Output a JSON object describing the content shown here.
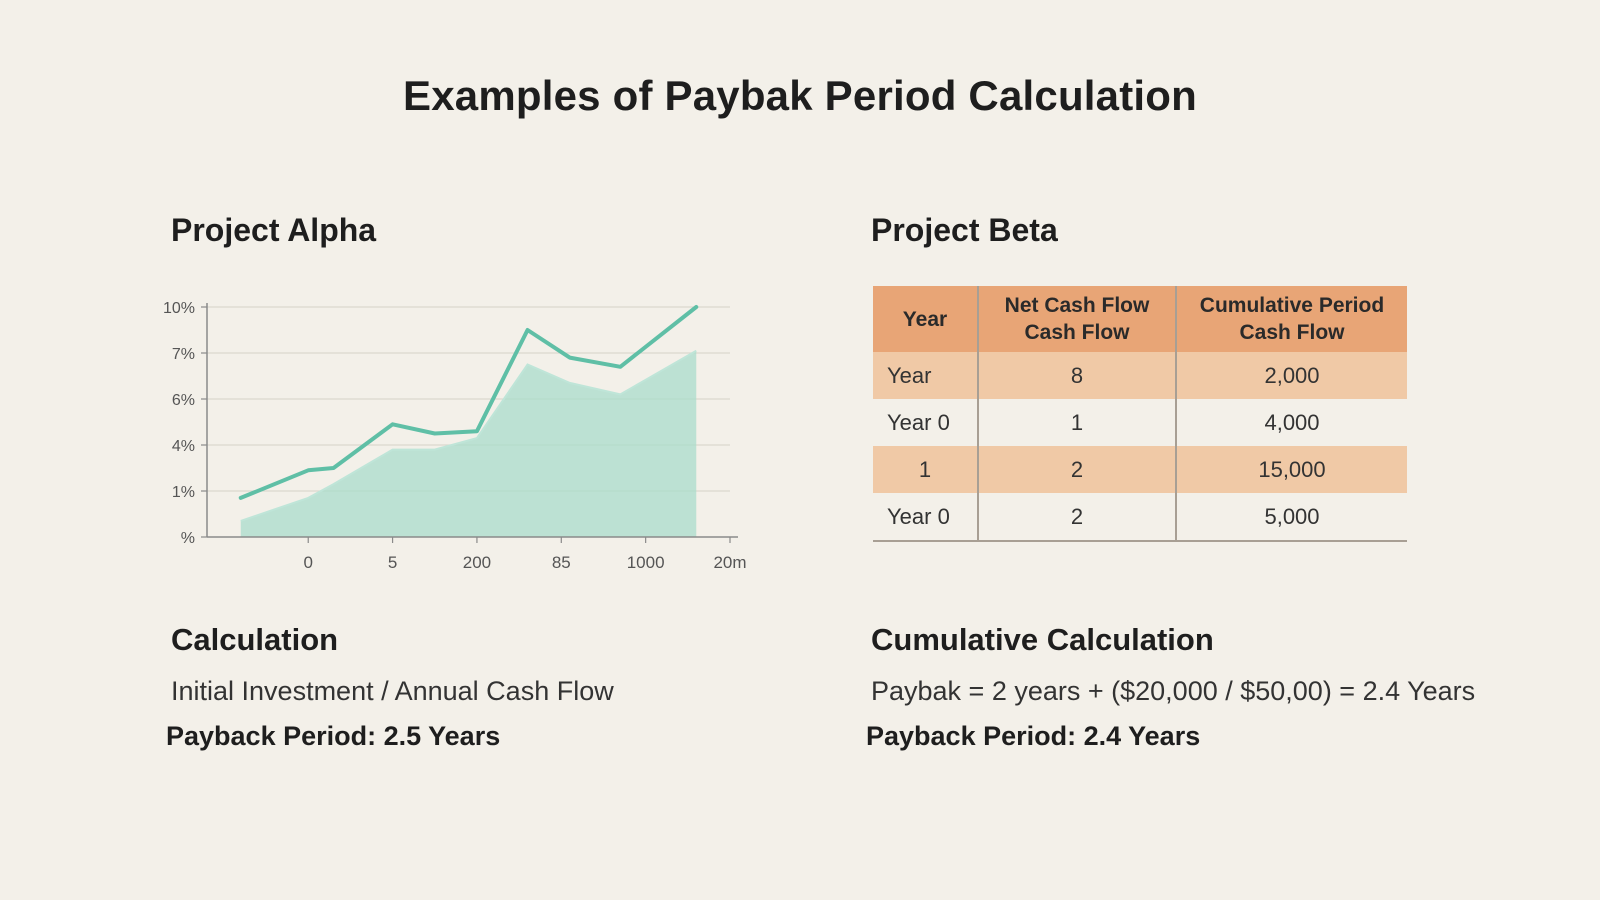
{
  "title": "Examples of Paybak Period Calculation",
  "alpha": {
    "title": "Project Alpha",
    "calc_title": "Calculation",
    "formula": "Initial Investment / Annual Cash Flow",
    "result": "Payback Period: 2.5 Years"
  },
  "beta": {
    "title": "Project Beta",
    "calc_title": "Cumulative Calculation",
    "formula": "Paybak = 2 years + ($20,000 / $50,00) = 2.4 Years",
    "result": "Payback Period: 2.4 Years",
    "table": {
      "headers": [
        [
          "Year"
        ],
        [
          "Net Cash Flow",
          "Cash Flow"
        ],
        [
          "Cumulative Period",
          "Cash Flow"
        ]
      ],
      "rows": [
        [
          "Year",
          "8",
          "2,000"
        ],
        [
          "Year 0",
          "1",
          "4,000"
        ],
        [
          "1",
          "2",
          "15,000"
        ],
        [
          "Year 0",
          "2",
          "5,000"
        ]
      ]
    }
  },
  "colors": {
    "background": "#f3f0e9",
    "line": "#5fbfa6",
    "area": "#a9dccb",
    "table_header": "#e8a576",
    "table_shaded": "#f0c9a6"
  },
  "chart_data": {
    "type": "area",
    "title": "",
    "y_tick_labels": [
      "%",
      "1%",
      "4%",
      "6%",
      "7%",
      "10%"
    ],
    "x_tick_labels": [
      "0",
      "5",
      "200",
      "85",
      "1000",
      "20m"
    ],
    "x": [
      -0.8,
      0,
      0.3,
      1,
      1.5,
      2,
      2.6,
      3.1,
      3.7,
      4.6
    ],
    "ylim": [
      0,
      5
    ],
    "grid": true,
    "series": [
      {
        "style": "line",
        "values": [
          0.85,
          1.45,
          1.5,
          2.45,
          2.25,
          2.3,
          4.5,
          3.9,
          3.7,
          5.0
        ]
      },
      {
        "style": "area",
        "values": [
          0.35,
          0.85,
          1.15,
          1.9,
          1.9,
          2.15,
          3.75,
          3.35,
          3.1,
          4.05
        ]
      }
    ]
  }
}
